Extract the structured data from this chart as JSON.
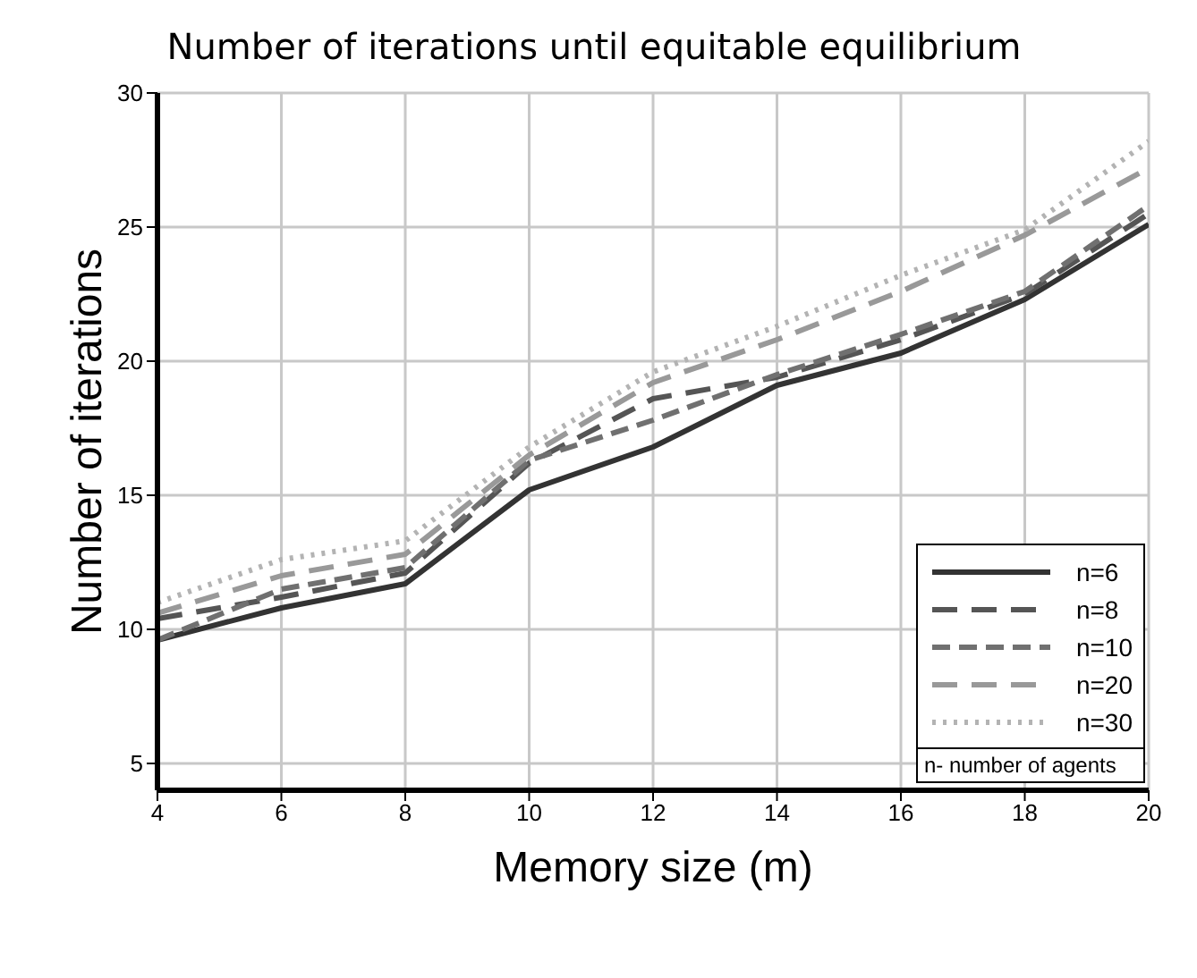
{
  "chart_data": {
    "type": "line",
    "title": "Number of iterations until equitable equilibrium",
    "xlabel": "Memory size (m)",
    "ylabel": "Number of iterations",
    "legend_title": "n- number of agents",
    "x": [
      4,
      6,
      8,
      10,
      12,
      14,
      16,
      18,
      20
    ],
    "series": [
      {
        "name": "n=6",
        "color": "#333333",
        "line_style": "solid",
        "values": [
          9.6,
          10.8,
          11.7,
          15.2,
          16.8,
          19.1,
          20.3,
          22.3,
          25.1
        ]
      },
      {
        "name": "n=8",
        "color": "#555555",
        "line_style": "dashed",
        "values": [
          10.4,
          11.2,
          12.1,
          16.2,
          18.6,
          19.4,
          20.8,
          22.5,
          25.5
        ]
      },
      {
        "name": "n=10",
        "color": "#707070",
        "line_style": "dashed",
        "values": [
          9.6,
          11.5,
          12.3,
          16.3,
          17.8,
          19.5,
          21.0,
          22.6,
          25.8
        ]
      },
      {
        "name": "n=20",
        "color": "#999999",
        "line_style": "dashed",
        "values": [
          10.6,
          12.0,
          12.8,
          16.5,
          19.2,
          20.8,
          22.6,
          24.7,
          27.2
        ]
      },
      {
        "name": "n=30",
        "color": "#b3b3b3",
        "line_style": "dotted",
        "values": [
          11.0,
          12.6,
          13.3,
          16.8,
          19.6,
          21.3,
          23.2,
          24.9,
          28.2
        ]
      }
    ],
    "xlim": [
      4,
      20
    ],
    "xticks": [
      4,
      6,
      8,
      10,
      12,
      14,
      16,
      18,
      20
    ],
    "ylim": [
      4,
      30
    ],
    "yticks": [
      5,
      10,
      15,
      20,
      25,
      30
    ],
    "grid": true,
    "legend": "bottom right"
  }
}
